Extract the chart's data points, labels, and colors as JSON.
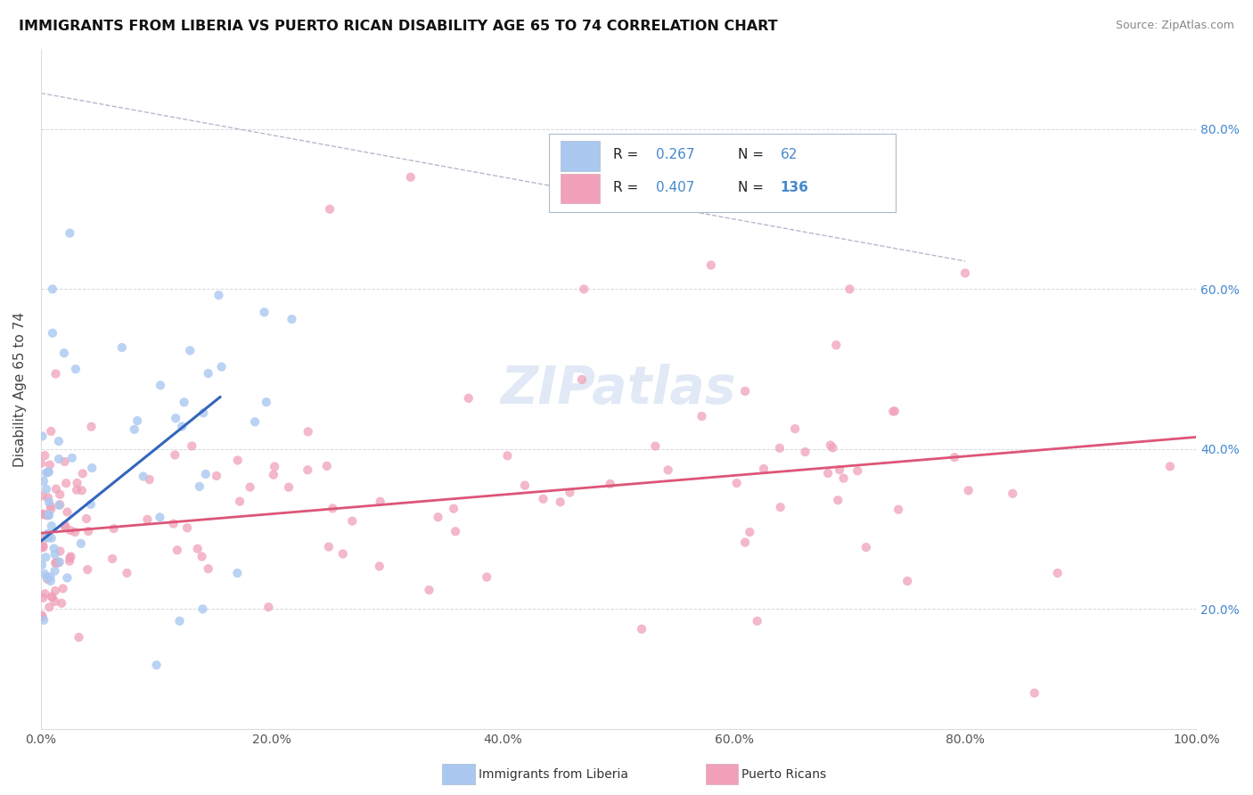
{
  "title": "IMMIGRANTS FROM LIBERIA VS PUERTO RICAN DISABILITY AGE 65 TO 74 CORRELATION CHART",
  "source": "Source: ZipAtlas.com",
  "ylabel": "Disability Age 65 to 74",
  "xlim": [
    0.0,
    1.0
  ],
  "ylim": [
    0.05,
    0.9
  ],
  "xticks": [
    0.0,
    0.2,
    0.4,
    0.6,
    0.8,
    1.0
  ],
  "xticklabels": [
    "0.0%",
    "20.0%",
    "40.0%",
    "60.0%",
    "80.0%",
    "100.0%"
  ],
  "ytick_right_labels": [
    "20.0%",
    "40.0%",
    "60.0%",
    "80.0%"
  ],
  "ytick_right_values": [
    0.2,
    0.4,
    0.6,
    0.8
  ],
  "liberia_color": "#aac8f0",
  "puertorico_color": "#f0a0b8",
  "liberia_line_color": "#3366bb",
  "puertorico_line_color": "#dd5577",
  "dashed_line_color": "#9999bb",
  "background_color": "#ffffff",
  "legend_box_color": "#e8eef8",
  "legend_border_color": "#aabbcc",
  "watermark_color": "#c8d8ee",
  "right_tick_color": "#4488cc",
  "legend_r1": "0.267",
  "legend_n1": "62",
  "legend_r2": "0.407",
  "legend_n2": "136",
  "lib_line_x0": 0.0,
  "lib_line_y0": 0.285,
  "lib_line_x1": 0.155,
  "lib_line_y1": 0.465,
  "pr_line_x0": 0.0,
  "pr_line_y0": 0.295,
  "pr_line_x1": 1.0,
  "pr_line_y1": 0.415,
  "dash_line_x0": 0.0,
  "dash_line_y0": 0.845,
  "dash_line_x1": 0.8,
  "dash_line_y1": 0.635
}
